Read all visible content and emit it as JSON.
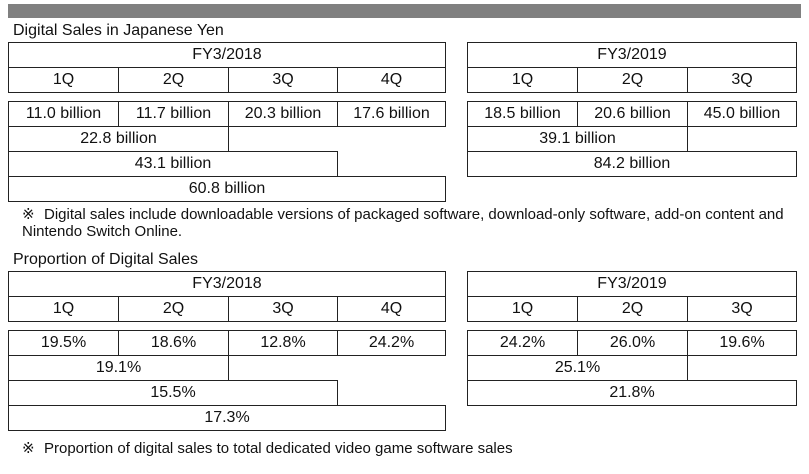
{
  "sales": {
    "title": "Digital Sales in Japanese Yen",
    "fy2018": {
      "header": "FY3/2018",
      "quarters": [
        "1Q",
        "2Q",
        "3Q",
        "4Q"
      ],
      "values": [
        "11.0 billion",
        "11.7 billion",
        "20.3 billion",
        "17.6 billion"
      ],
      "half": "22.8 billion",
      "nine_months": "43.1 billion",
      "full_year": "60.8 billion"
    },
    "fy2019": {
      "header": "FY3/2019",
      "quarters": [
        "1Q",
        "2Q",
        "3Q"
      ],
      "values": [
        "18.5 billion",
        "20.6 billion",
        "45.0 billion"
      ],
      "half": "39.1 billion",
      "nine_months": "84.2 billion"
    },
    "note_mark": "※",
    "note": "Digital sales include downloadable versions of packaged software, download-only software, add-on content and Nintendo Switch Online."
  },
  "proportion": {
    "title": "Proportion of Digital Sales",
    "fy2018": {
      "header": "FY3/2018",
      "quarters": [
        "1Q",
        "2Q",
        "3Q",
        "4Q"
      ],
      "values": [
        "19.5%",
        "18.6%",
        "12.8%",
        "24.2%"
      ],
      "half": "19.1%",
      "nine_months": "15.5%",
      "full_year": "17.3%"
    },
    "fy2019": {
      "header": "FY3/2019",
      "quarters": [
        "1Q",
        "2Q",
        "3Q"
      ],
      "values": [
        "24.2%",
        "26.0%",
        "19.6%"
      ],
      "half": "25.1%",
      "nine_months": "21.8%"
    },
    "note_mark": "※",
    "note": "Proportion of digital sales to total dedicated video game software sales"
  }
}
